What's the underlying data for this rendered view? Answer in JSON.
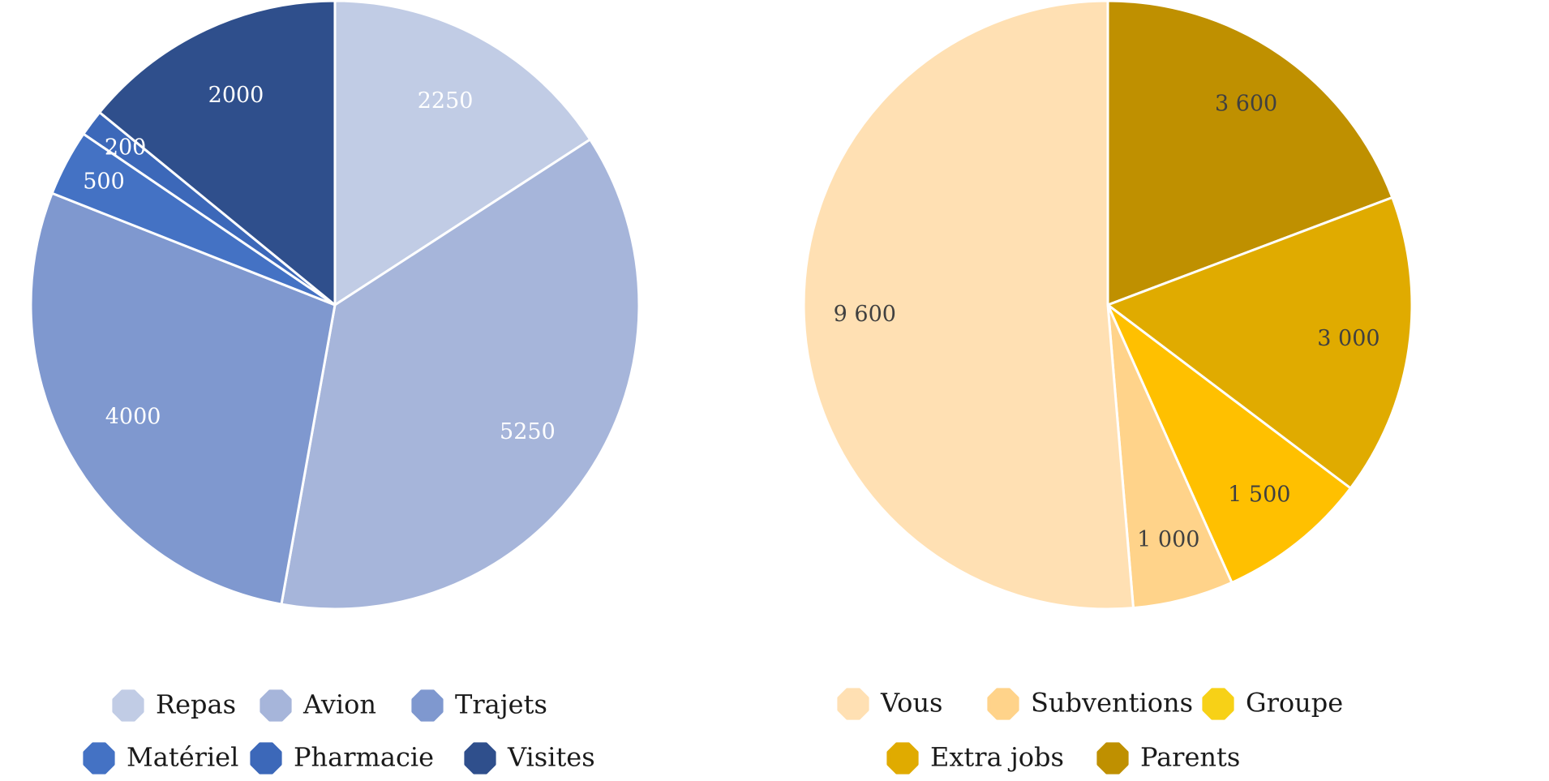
{
  "chart_data": [
    {
      "type": "pie",
      "title": "",
      "start": "top",
      "direction": "clockwise",
      "label_color": "#ffffff",
      "slices": [
        {
          "name": "Repas",
          "value": 2250,
          "label": "2250",
          "color": "#c1cce5"
        },
        {
          "name": "Avion",
          "value": 5250,
          "label": "5250",
          "color": "#a6b5da"
        },
        {
          "name": "Trajets",
          "value": 4000,
          "label": "4000",
          "color": "#7f98cf"
        },
        {
          "name": "Matériel",
          "value": 500,
          "label": "500",
          "color": "#4472c4"
        },
        {
          "name": "Pharmacie",
          "value": 200,
          "label": "200",
          "color": "#3c68b9"
        },
        {
          "name": "Visites",
          "value": 2000,
          "label": "2000",
          "color": "#2f4f8c"
        }
      ],
      "legend": {
        "position": "bottom",
        "rows": [
          [
            "Repas",
            "Avion",
            "Trajets"
          ],
          [
            "Matériel",
            "Pharmacie",
            "Visites"
          ]
        ]
      }
    },
    {
      "type": "pie",
      "title": "",
      "start": "top",
      "direction": "clockwise",
      "label_color": "#404040",
      "slices": [
        {
          "name": "Parents",
          "value": 3600,
          "label": "3 600",
          "color": "#bf9000"
        },
        {
          "name": "Extra jobs",
          "value": 3000,
          "label": "3 000",
          "color": "#e0ab00"
        },
        {
          "name": "Groupe",
          "value": 1500,
          "label": "1 500",
          "color": "#ffc000"
        },
        {
          "name": "Subventions",
          "value": 1000,
          "label": "1 000",
          "color": "#ffd38a"
        },
        {
          "name": "Vous",
          "value": 9600,
          "label": "9 600",
          "color": "#ffe0b3"
        }
      ],
      "legend": {
        "position": "bottom",
        "rows": [
          [
            "Vous",
            "Subventions",
            "Groupe"
          ],
          [
            "Extra jobs",
            "Parents"
          ]
        ]
      },
      "legend_marker_colors": {
        "Vous": "#ffe0b3",
        "Subventions": "#ffd38a",
        "Groupe": "#f7d117",
        "Extra jobs": "#e0ab00",
        "Parents": "#bf9000"
      }
    }
  ]
}
